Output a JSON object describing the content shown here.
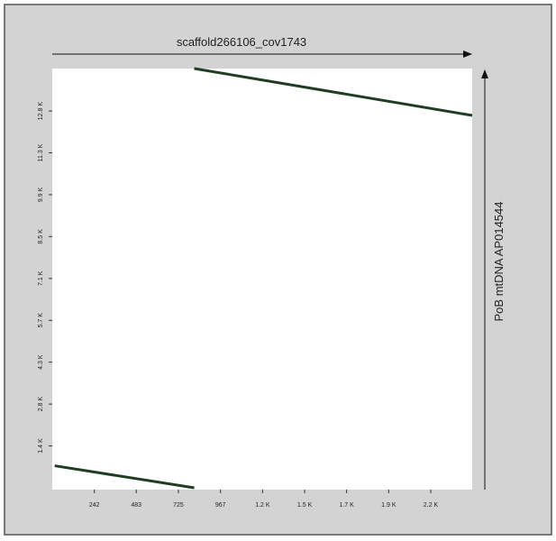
{
  "chart_data": {
    "type": "line",
    "x_label": "scaffold266106_cov1743",
    "y_label": "PoB mtDNA AP014544",
    "series": [
      {
        "color": "#1e3d22",
        "x": [
          816,
          2414
        ],
        "values": [
          14200,
          12611
        ]
      },
      {
        "color": "#1e3d22",
        "x": [
          14,
          816
        ],
        "values": [
          746,
          0
        ]
      }
    ],
    "xlim": [
      0,
      2414
    ],
    "ylim": [
      0,
      14200
    ],
    "xticks": [
      242,
      483,
      725,
      967,
      {
        "value": 1209,
        "label": "1.2 K"
      },
      {
        "value": 1451,
        "label": "1.5 K"
      },
      {
        "value": 1692,
        "label": "1.7 K"
      },
      {
        "value": 1934,
        "label": "1.9 K"
      },
      {
        "value": 2176,
        "label": "2.2 K"
      }
    ],
    "yticks": [
      {
        "value": 1418,
        "label": "1.4 K"
      },
      {
        "value": 2836,
        "label": "2.8 K"
      },
      {
        "value": 4254,
        "label": "4.3 K"
      },
      {
        "value": 5672,
        "label": "5.7 K"
      },
      {
        "value": 7090,
        "label": "7.1 K"
      },
      {
        "value": 8508,
        "label": "8.5 K"
      },
      {
        "value": 9926,
        "label": "9.9 K"
      },
      {
        "value": 11344,
        "label": "11.3 K"
      },
      {
        "value": 12762,
        "label": "12.8 K"
      }
    ]
  }
}
